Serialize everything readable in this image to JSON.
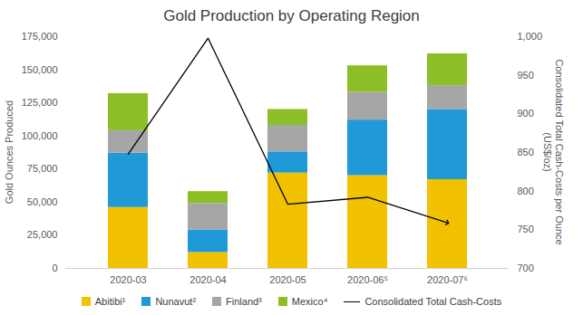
{
  "chart_data": {
    "type": "bar",
    "title": "Gold Production by Operating Region",
    "categories": [
      "2020-03",
      "2020-04",
      "2020-05",
      "2020-06⁵",
      "2020-07⁶"
    ],
    "stacked": true,
    "grid": false,
    "legend": "bottom",
    "ylabel": "Gold Ounces Produced",
    "y2label": "Consolidated Total Cash-Costs per Ounce (US$/oz)",
    "ylim": [
      0,
      175000
    ],
    "yticks": [
      0,
      {
        "value": 25000,
        "label": "25,000"
      },
      {
        "value": 50000,
        "label": "50,000"
      },
      {
        "value": 75000,
        "label": "75,000"
      },
      {
        "value": 100000,
        "label": "100,000"
      },
      {
        "value": 125000,
        "label": "125,000"
      },
      {
        "value": 150000,
        "label": "150,000"
      },
      {
        "value": 175000,
        "label": "175,000"
      }
    ],
    "y2lim": [
      700,
      1000
    ],
    "y2ticks": [
      700,
      750,
      800,
      850,
      900,
      950,
      {
        "value": 1000,
        "label": "1,000"
      }
    ],
    "series": [
      {
        "name": "Abitibi¹",
        "type": "bar",
        "color": "#f2c200",
        "values": [
          46000,
          12000,
          72000,
          70000,
          67000
        ]
      },
      {
        "name": "Nunavut²",
        "type": "bar",
        "color": "#1f9ad6",
        "values": [
          41000,
          17000,
          16000,
          42000,
          53000
        ]
      },
      {
        "name": "Finland³",
        "type": "bar",
        "color": "#a6a6a6",
        "values": [
          17000,
          20000,
          20000,
          21000,
          18000
        ]
      },
      {
        "name": "Mexico⁴",
        "type": "bar",
        "color": "#8cbf26",
        "values": [
          28000,
          9000,
          12000,
          20000,
          24000
        ]
      },
      {
        "name": "Consolidated Total Cash-Costs",
        "type": "line",
        "axis": "y2",
        "color": "#000000",
        "marker": "arrow",
        "values": [
          848,
          998,
          783,
          792,
          759
        ]
      }
    ]
  }
}
